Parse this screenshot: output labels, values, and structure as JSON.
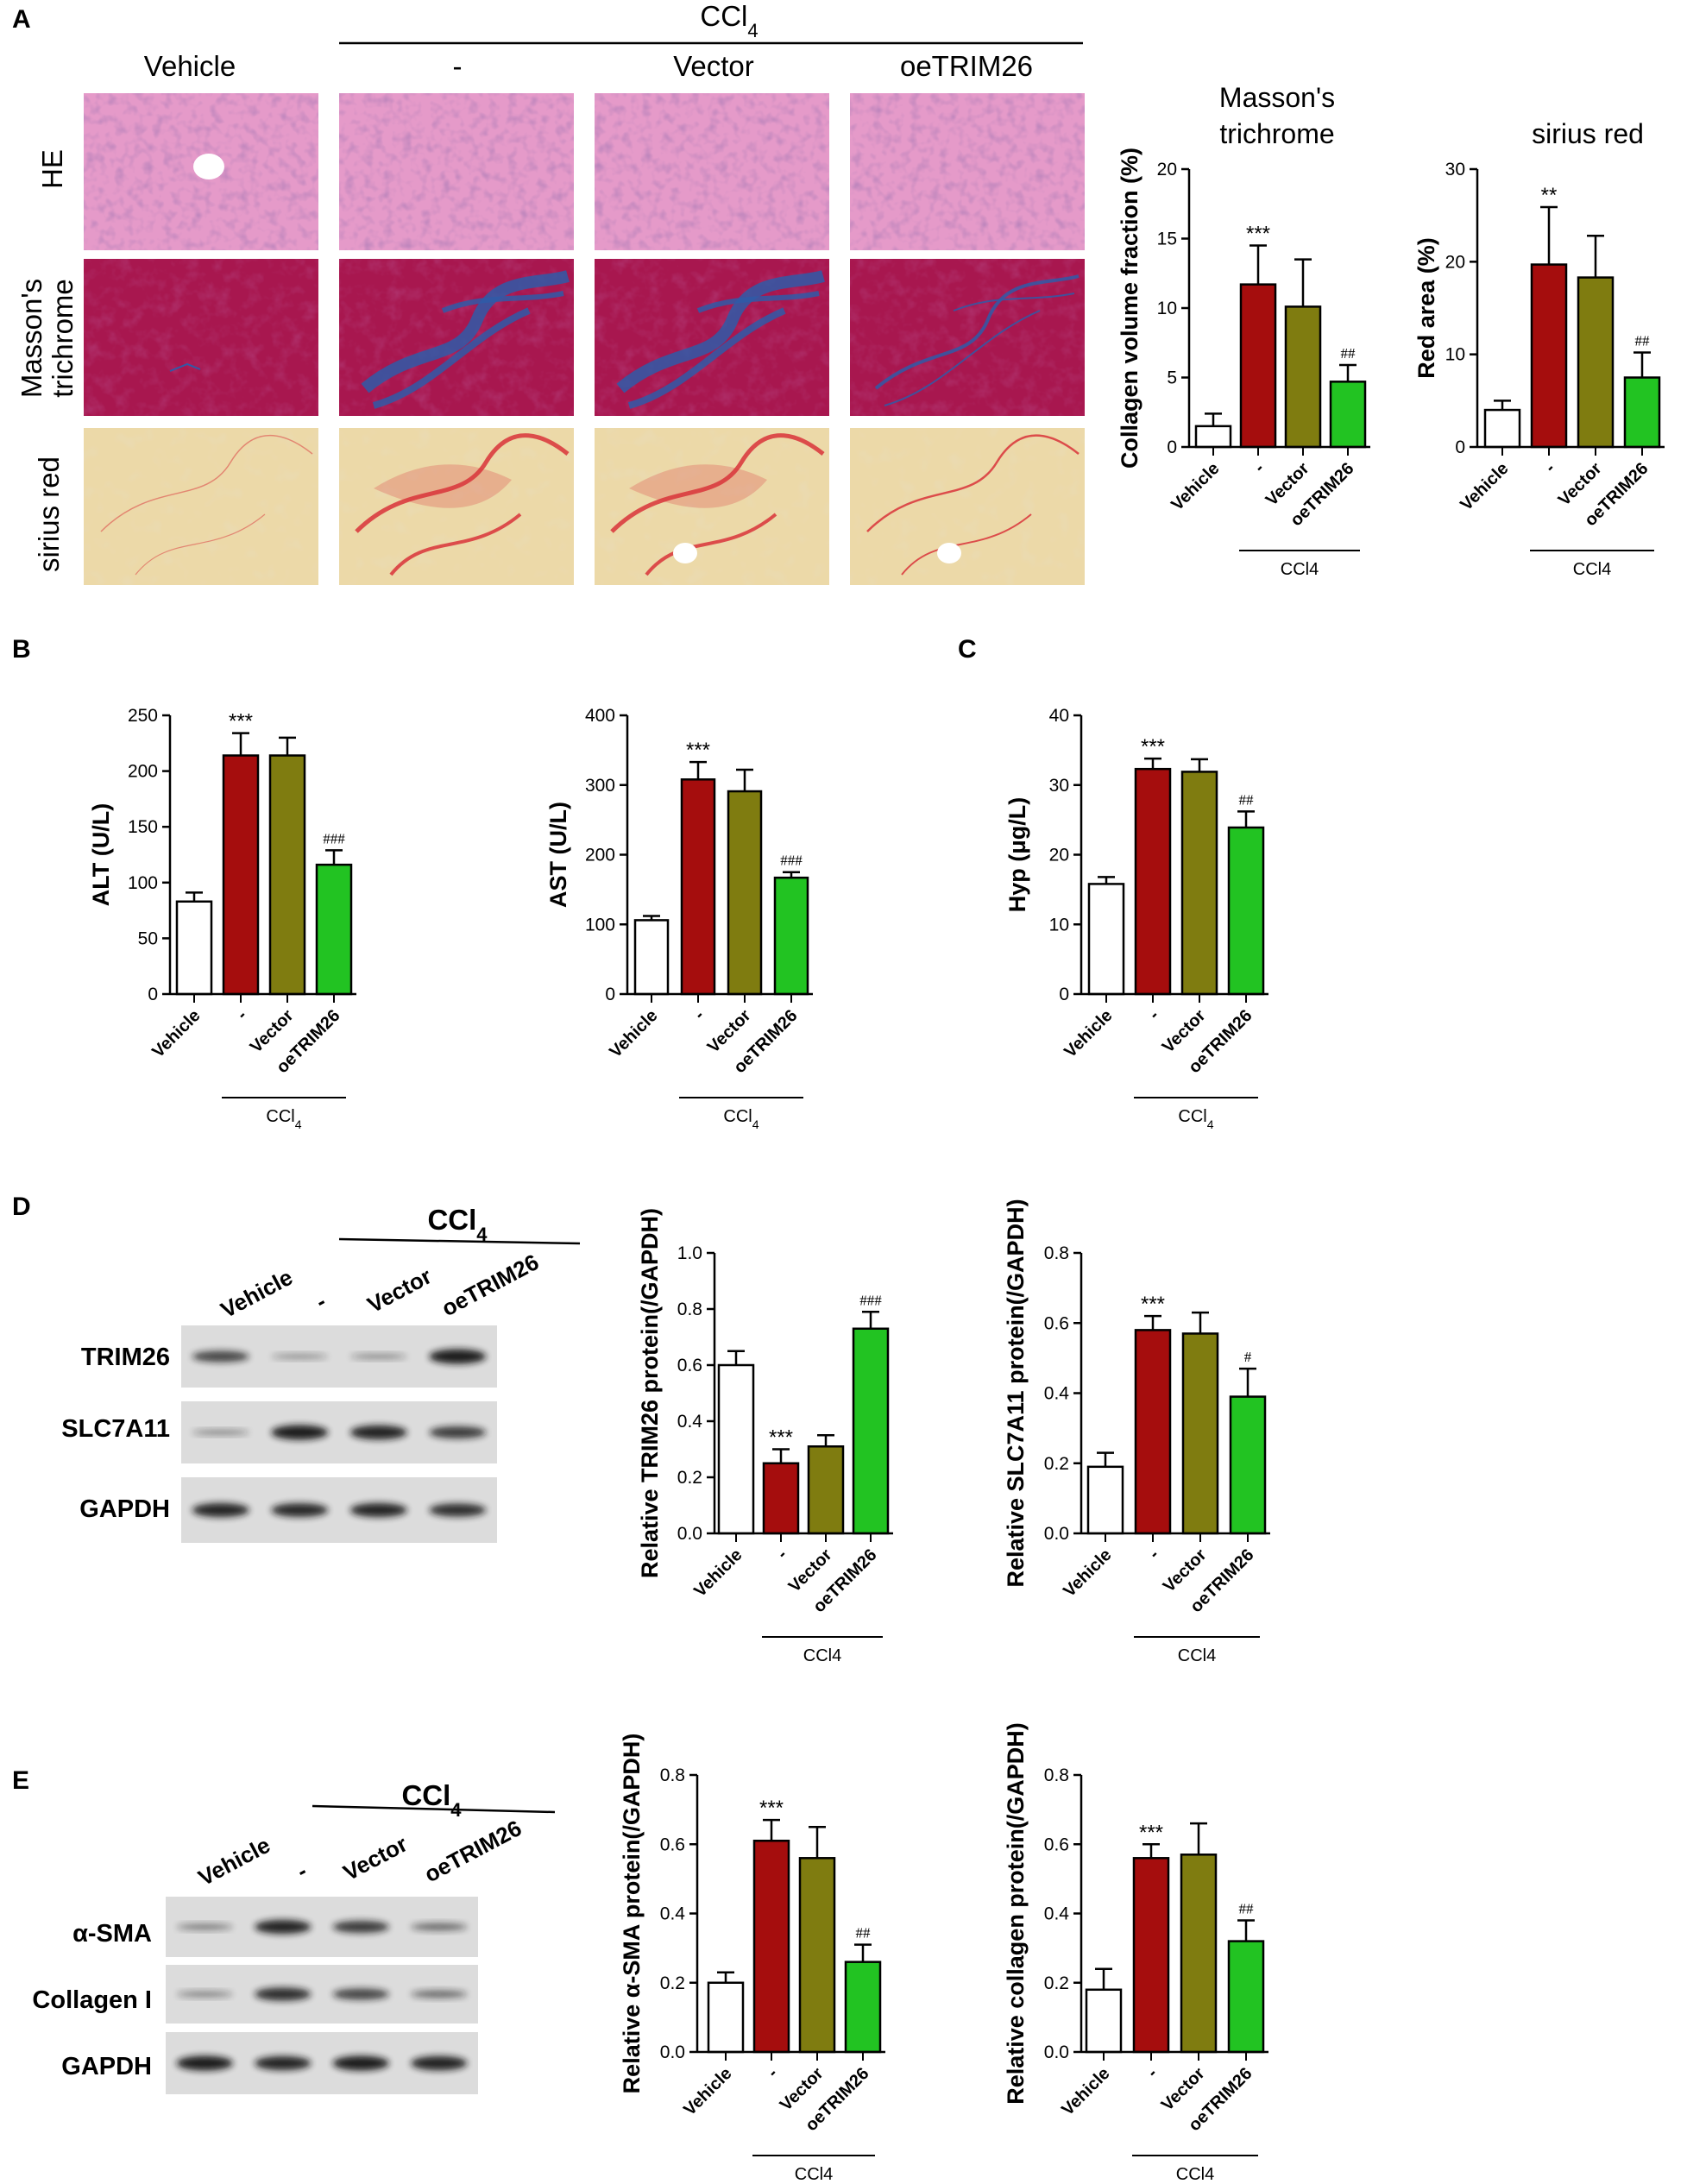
{
  "colors": {
    "vehicle": "#ffffff",
    "ccl4": "#a50d0d",
    "vector": "#7f7c10",
    "oetrim26": "#22c322",
    "he_stain": "#e59ac9",
    "masson_red": "#a8174f",
    "masson_blue": "#2f5aa8",
    "sirius_bg": "#ecd9a8",
    "sirius_red": "#d9333a"
  },
  "panel_a": {
    "label": "A",
    "group_header": "CCl",
    "group_header_sub": "4",
    "columns": [
      "Vehicle",
      "-",
      "Vector",
      "oeTRIM26"
    ],
    "rows": [
      "HE",
      "Masson's",
      "trichrome",
      "sirius red"
    ]
  },
  "panel_b": {
    "label": "B"
  },
  "panel_c": {
    "label": "C"
  },
  "panel_d": {
    "label": "D",
    "group_header": "CCl",
    "group_header_sub": "4",
    "lanes": [
      "Vehicle",
      "-",
      "Vector",
      "oeTRIM26"
    ],
    "bands": [
      "TRIM26",
      "SLC7A11",
      "GAPDH"
    ]
  },
  "panel_e": {
    "label": "E",
    "group_header": "CCl",
    "group_header_sub": "4",
    "lanes": [
      "Vehicle",
      "-",
      "Vector",
      "oeTRIM26"
    ],
    "bands": [
      "α-SMA",
      "Collagen I",
      "GAPDH"
    ]
  },
  "chart_data": [
    {
      "id": "masson",
      "type": "bar",
      "title_lines": [
        "Masson's",
        "trichrome"
      ],
      "ylabel": "Collagen volume fraction (%)",
      "categories": [
        "Vehicle",
        "-",
        "Vector",
        "oeTRIM26"
      ],
      "values": [
        1.5,
        11.7,
        10.1,
        4.7
      ],
      "errors": [
        0.9,
        2.8,
        3.4,
        1.2
      ],
      "annotations": [
        "",
        "***",
        "",
        "##"
      ],
      "ylim": [
        0,
        20
      ],
      "yticks": [
        "0",
        "5",
        "10",
        "15",
        "20"
      ],
      "group_label": "CCl4",
      "group_sub": ""
    },
    {
      "id": "sirius",
      "type": "bar",
      "title_lines": [
        "sirius red"
      ],
      "ylabel": "Red area (%)",
      "categories": [
        "Vehicle",
        "-",
        "Vector",
        "oeTRIM26"
      ],
      "values": [
        4.0,
        19.7,
        18.3,
        7.5
      ],
      "errors": [
        1.0,
        6.2,
        4.5,
        2.7
      ],
      "annotations": [
        "",
        "**",
        "",
        "##"
      ],
      "ylim": [
        0,
        30
      ],
      "yticks": [
        "0",
        "10",
        "20",
        "30"
      ],
      "group_label": "CCl4",
      "group_sub": ""
    },
    {
      "id": "alt",
      "type": "bar",
      "title_lines": [],
      "ylabel": "ALT (U/L)",
      "categories": [
        "Vehicle",
        "-",
        "Vector",
        "oeTRIM26"
      ],
      "values": [
        83,
        214,
        214,
        116
      ],
      "errors": [
        8,
        20,
        16,
        13
      ],
      "annotations": [
        "",
        "***",
        "",
        "###"
      ],
      "ylim": [
        0,
        250
      ],
      "yticks": [
        "0",
        "50",
        "100",
        "150",
        "200",
        "250"
      ],
      "group_label": "CCl",
      "group_sub": "4"
    },
    {
      "id": "ast",
      "type": "bar",
      "title_lines": [],
      "ylabel": "AST (U/L)",
      "categories": [
        "Vehicle",
        "-",
        "Vector",
        "oeTRIM26"
      ],
      "values": [
        106,
        308,
        291,
        167
      ],
      "errors": [
        6,
        25,
        31,
        8
      ],
      "annotations": [
        "",
        "***",
        "",
        "###"
      ],
      "ylim": [
        0,
        400
      ],
      "yticks": [
        "0",
        "100",
        "200",
        "300",
        "400"
      ],
      "group_label": "CCl",
      "group_sub": "4"
    },
    {
      "id": "hyp",
      "type": "bar",
      "title_lines": [],
      "ylabel": "Hyp (μg/L)",
      "categories": [
        "Vehicle",
        "-",
        "Vector",
        "oeTRIM26"
      ],
      "values": [
        15.8,
        32.3,
        31.9,
        23.9
      ],
      "errors": [
        1.0,
        1.5,
        1.8,
        2.3
      ],
      "annotations": [
        "",
        "***",
        "",
        "##"
      ],
      "ylim": [
        0,
        40
      ],
      "yticks": [
        "0",
        "10",
        "20",
        "30",
        "40"
      ],
      "group_label": "CCl",
      "group_sub": "4"
    },
    {
      "id": "trim26",
      "type": "bar",
      "title_lines": [],
      "ylabel": "Relative TRIM26 protein(/GAPDH)",
      "categories": [
        "Vehicle",
        "-",
        "Vector",
        "oeTRIM26"
      ],
      "values": [
        0.6,
        0.25,
        0.31,
        0.73
      ],
      "errors": [
        0.05,
        0.05,
        0.04,
        0.06
      ],
      "annotations": [
        "",
        "***",
        "",
        "###"
      ],
      "ylim": [
        0,
        1.0
      ],
      "yticks": [
        "0.0",
        "0.2",
        "0.4",
        "0.6",
        "0.8",
        "1.0"
      ],
      "group_label": "CCl4",
      "group_sub": ""
    },
    {
      "id": "slc7a11",
      "type": "bar",
      "title_lines": [],
      "ylabel": "Relative SLC7A11 protein(/GAPDH)",
      "categories": [
        "Vehicle",
        "-",
        "Vector",
        "oeTRIM26"
      ],
      "values": [
        0.19,
        0.58,
        0.57,
        0.39
      ],
      "errors": [
        0.04,
        0.04,
        0.06,
        0.08
      ],
      "annotations": [
        "",
        "***",
        "",
        "#"
      ],
      "ylim": [
        0,
        0.8
      ],
      "yticks": [
        "0.0",
        "0.2",
        "0.4",
        "0.6",
        "0.8"
      ],
      "group_label": "CCl4",
      "group_sub": ""
    },
    {
      "id": "asma",
      "type": "bar",
      "title_lines": [],
      "ylabel": "Relative α-SMA protein(/GAPDH)",
      "categories": [
        "Vehicle",
        "-",
        "Vector",
        "oeTRIM26"
      ],
      "values": [
        0.2,
        0.61,
        0.56,
        0.26
      ],
      "errors": [
        0.03,
        0.06,
        0.09,
        0.05
      ],
      "annotations": [
        "",
        "***",
        "",
        "##"
      ],
      "ylim": [
        0,
        0.8
      ],
      "yticks": [
        "0.0",
        "0.2",
        "0.4",
        "0.6",
        "0.8"
      ],
      "group_label": "CCl4",
      "group_sub": ""
    },
    {
      "id": "collagen",
      "type": "bar",
      "title_lines": [],
      "ylabel": "Relative collagen protein(/GAPDH)",
      "categories": [
        "Vehicle",
        "-",
        "Vector",
        "oeTRIM26"
      ],
      "values": [
        0.18,
        0.56,
        0.57,
        0.32
      ],
      "errors": [
        0.06,
        0.04,
        0.09,
        0.06
      ],
      "annotations": [
        "",
        "***",
        "",
        "##"
      ],
      "ylim": [
        0,
        0.8
      ],
      "yticks": [
        "0.0",
        "0.2",
        "0.4",
        "0.6",
        "0.8"
      ],
      "group_label": "CCl4",
      "group_sub": ""
    }
  ]
}
